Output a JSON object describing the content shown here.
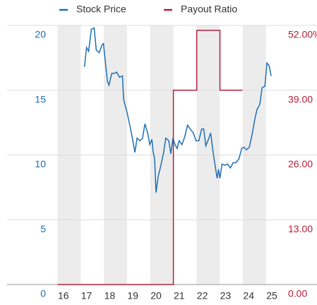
{
  "chart_data": {
    "type": "line",
    "series": [
      {
        "name": "Stock Price",
        "color": "#1f6fb5",
        "axis": "y",
        "x": [
          16.91,
          17.0,
          17.09,
          17.21,
          17.33,
          17.42,
          17.55,
          17.67,
          17.73,
          17.9,
          17.97,
          18.09,
          18.21,
          18.3,
          18.42,
          18.55,
          18.6,
          18.76,
          18.88,
          19.0,
          19.09,
          19.18,
          19.3,
          19.42,
          19.52,
          19.64,
          19.73,
          19.82,
          19.88,
          19.94,
          20.0,
          20.09,
          20.21,
          20.33,
          20.42,
          20.55,
          20.64,
          20.73,
          20.82,
          20.91,
          21.0,
          21.12,
          21.24,
          21.36,
          21.48,
          21.61,
          21.73,
          21.85,
          21.97,
          22.06,
          22.15,
          22.24,
          22.36,
          22.45,
          22.55,
          22.64,
          22.7,
          22.76,
          22.85,
          22.97,
          23.09,
          23.21,
          23.33,
          23.45,
          23.58,
          23.7,
          23.79,
          23.91,
          24.03,
          24.15,
          24.27,
          24.36,
          24.48,
          24.58,
          24.7,
          24.79,
          24.88,
          24.97
        ],
        "values": [
          16.8,
          18.3,
          18.0,
          19.7,
          19.8,
          18.1,
          17.9,
          18.5,
          18.6,
          15.7,
          15.4,
          16.3,
          16.3,
          16.4,
          16.0,
          16.1,
          14.3,
          13.2,
          12.2,
          11.1,
          10.2,
          11.3,
          11.1,
          11.3,
          12.4,
          11.7,
          10.8,
          11.2,
          10.2,
          9.7,
          7.1,
          8.3,
          9.2,
          10.2,
          11.3,
          11.1,
          10.1,
          11.3,
          10.8,
          10.5,
          11.1,
          10.8,
          11.4,
          12.3,
          12.0,
          11.7,
          11.1,
          11.1,
          12.0,
          12.0,
          10.7,
          11.1,
          11.7,
          10.4,
          9.2,
          8.2,
          8.9,
          8.2,
          9.3,
          9.2,
          9.3,
          9.0,
          9.4,
          9.4,
          9.7,
          10.5,
          10.6,
          10.4,
          10.6,
          11.6,
          12.8,
          13.5,
          13.9,
          15.2,
          15.3,
          17.1,
          16.9,
          16.1
        ]
      },
      {
        "name": "Payout Ratio",
        "color": "#b5203b",
        "axis": "y2",
        "x": [
          15.75,
          20.75,
          20.75,
          21.76,
          21.76,
          22.76,
          22.76,
          23.73
        ],
        "values": [
          0,
          0,
          39,
          39,
          51,
          51,
          39,
          39
        ]
      }
    ],
    "xlim": [
      15.55,
      25.0
    ],
    "xticks": [
      16,
      17,
      18,
      19,
      20,
      21,
      22,
      23,
      24,
      25
    ],
    "ylim": [
      0,
      20
    ],
    "yticks": [
      0,
      5,
      10,
      15,
      20
    ],
    "y2lim": [
      0,
      52
    ],
    "y2ticks": [
      {
        "value": 0,
        "label": "0.00"
      },
      {
        "value": 13,
        "label": "13.00"
      },
      {
        "value": 26,
        "label": "26.00"
      },
      {
        "value": 39,
        "label": "39.00"
      },
      {
        "value": 52,
        "label": "52.00%"
      }
    ],
    "grid": true
  }
}
